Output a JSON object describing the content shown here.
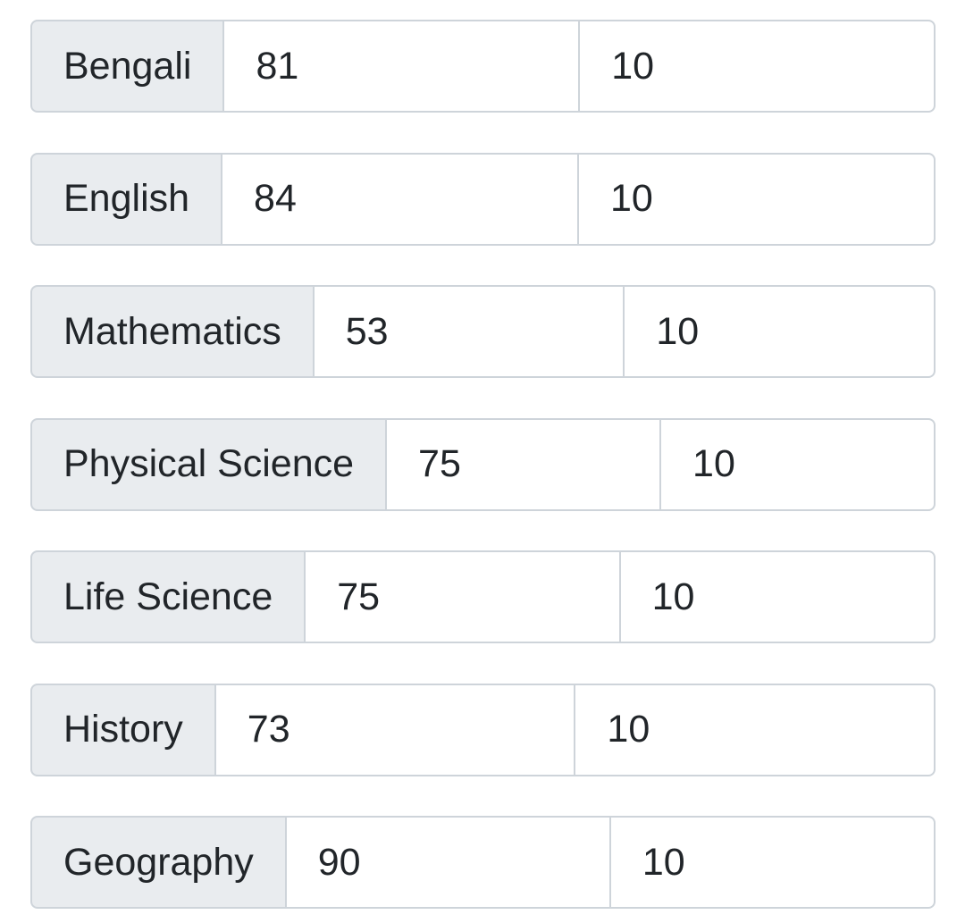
{
  "subjects": [
    {
      "name": "Bengali",
      "marks": "81",
      "grade": "10"
    },
    {
      "name": "English",
      "marks": "84",
      "grade": "10"
    },
    {
      "name": "Mathematics",
      "marks": "53",
      "grade": "10"
    },
    {
      "name": "Physical Science",
      "marks": "75",
      "grade": "10"
    },
    {
      "name": "Life Science",
      "marks": "75",
      "grade": "10"
    },
    {
      "name": "History",
      "marks": "73",
      "grade": "10"
    },
    {
      "name": "Geography",
      "marks": "90",
      "grade": "10"
    }
  ],
  "colors": {
    "label_bg": "#e9ecef",
    "border": "#ced4da",
    "text": "#212529"
  }
}
